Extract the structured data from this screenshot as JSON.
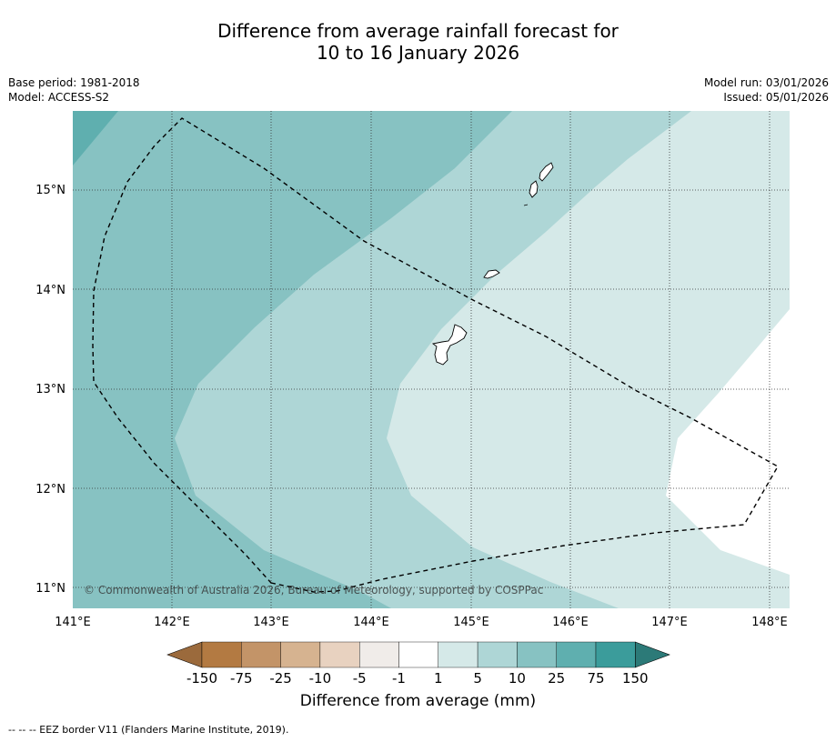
{
  "title": {
    "line1": "Difference from average rainfall forecast for",
    "line2": "10 to 16 January 2026"
  },
  "meta": {
    "base_period": "Base period: 1981-2018",
    "model": "Model: ACCESS-S2",
    "model_run": "Model run: 03/01/2026",
    "issued": "Issued: 05/01/2026"
  },
  "map": {
    "lon_labels": [
      "141°E",
      "142°E",
      "143°E",
      "144°E",
      "145°E",
      "146°E",
      "147°E",
      "148°E"
    ],
    "lat_labels": [
      "15°N",
      "14°N",
      "13°N",
      "12°N",
      "11°N"
    ],
    "copyright": "© Commonwealth of Australia 2026, Bureau of Meteorology, supported by COSPPac"
  },
  "colorbar": {
    "ticks": [
      "-150",
      "-75",
      "-25",
      "-10",
      "-5",
      "-1",
      "1",
      "5",
      "10",
      "25",
      "75",
      "150"
    ],
    "colors": [
      "#9b6a3c",
      "#b37a42",
      "#c39468",
      "#d6b390",
      "#e8d2c0",
      "#f0ece9",
      "#ffffff",
      "#d5e9e8",
      "#aed6d6",
      "#87c2c2",
      "#5fafaf",
      "#3b9c9b",
      "#2c7a78"
    ],
    "label": "Difference from average (mm)"
  },
  "footnote": "--  --  -- EEZ border V11 (Flanders Marine Institute, 2019)."
}
